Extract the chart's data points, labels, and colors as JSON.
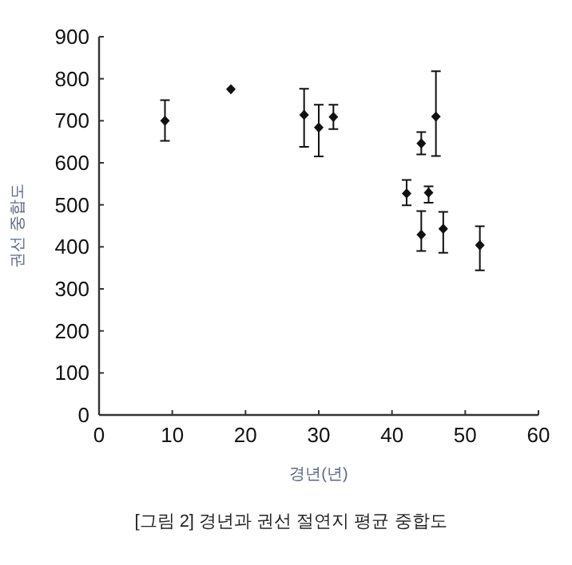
{
  "chart_data": {
    "type": "scatter",
    "title": "[그림 2] 경년과 권선 절연지 평균 중합도",
    "xlabel": "경년(년)",
    "ylabel": "권선 중합도",
    "x": [
      9,
      18,
      28,
      30,
      32,
      42,
      44,
      44,
      45,
      46,
      47,
      52
    ],
    "series": [
      {
        "color": "#111111",
        "values": [
          700,
          775,
          714,
          684,
          709,
          527,
          646,
          429,
          529,
          710,
          443,
          404
        ],
        "errors": [
          [
            652,
            749
          ],
          null,
          [
            638,
            776
          ],
          [
            615,
            738
          ],
          [
            680,
            738
          ],
          [
            499,
            559
          ],
          [
            620,
            673
          ],
          [
            390,
            485
          ],
          [
            505,
            544
          ],
          [
            616,
            818
          ],
          [
            386,
            483
          ],
          [
            344,
            449
          ]
        ]
      }
    ],
    "xlim": [
      0,
      60
    ],
    "xticks": [
      0,
      10,
      20,
      30,
      40,
      50,
      60
    ],
    "ylim": [
      0,
      900
    ],
    "yticks": [
      0,
      100,
      200,
      300,
      400,
      500,
      600,
      700,
      800,
      900
    ],
    "marker": "diamond",
    "grid": false
  }
}
